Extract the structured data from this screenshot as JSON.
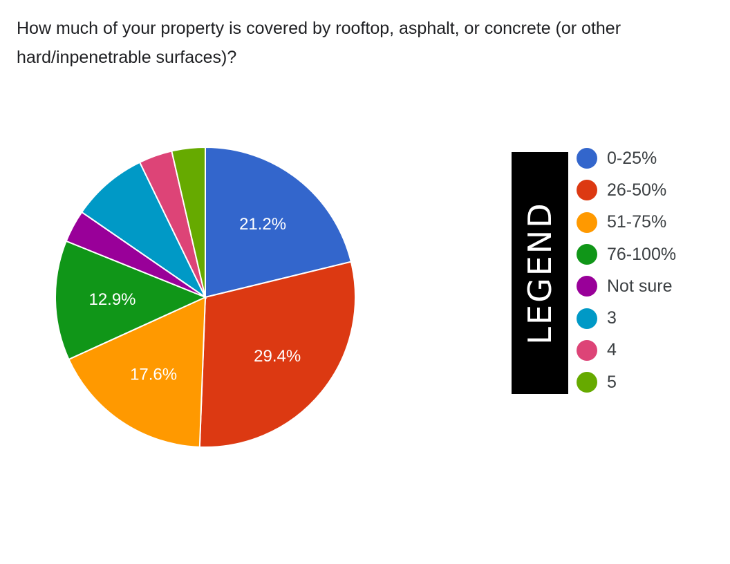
{
  "question": "How much of your property is covered by rooftop, asphalt, or concrete (or other hard/inpenetrable surfaces)?",
  "legend_banner": "LEGEND",
  "chart_data": {
    "type": "pie",
    "title": "",
    "start_angle_deg": 90,
    "direction": "clockwise",
    "legend_position": "right",
    "slices": [
      {
        "label": "0-25%",
        "value": 21.2,
        "color": "#3366cc",
        "show_label": "21.2%"
      },
      {
        "label": "26-50%",
        "value": 29.4,
        "color": "#dc3912",
        "show_label": "29.4%"
      },
      {
        "label": "51-75%",
        "value": 17.6,
        "color": "#ff9900",
        "show_label": "17.6%"
      },
      {
        "label": "76-100%",
        "value": 12.9,
        "color": "#109618",
        "show_label": "12.9%"
      },
      {
        "label": "Not sure",
        "value": 3.5,
        "color": "#990099",
        "show_label": ""
      },
      {
        "label": "3",
        "value": 8.2,
        "color": "#0099c6",
        "show_label": ""
      },
      {
        "label": "4",
        "value": 3.6,
        "color": "#dd4477",
        "show_label": ""
      },
      {
        "label": "5",
        "value": 3.6,
        "color": "#66aa00",
        "show_label": ""
      }
    ]
  }
}
